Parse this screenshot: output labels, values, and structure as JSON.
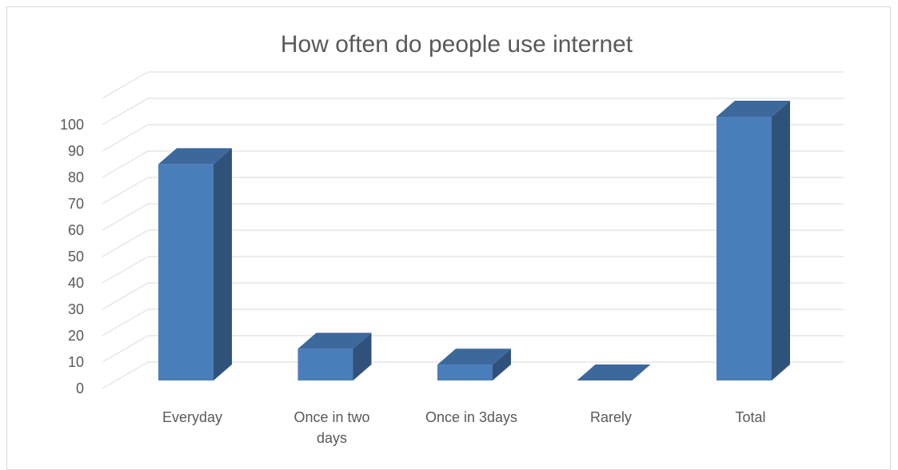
{
  "chart_data": {
    "type": "bar",
    "title": "How often do people use internet",
    "categories": [
      "Everyday",
      "Once in two days",
      "Once in 3days",
      "Rarely",
      "Total"
    ],
    "series": [
      {
        "values": [
          82,
          12,
          6,
          0,
          100
        ]
      }
    ],
    "ylim": [
      0,
      100
    ],
    "yticks": [
      0,
      10,
      20,
      30,
      40,
      50,
      60,
      70,
      80,
      90,
      100
    ],
    "grid": true,
    "legend": "none",
    "colors": {
      "front": "#4a7ebb",
      "side": "#30527a",
      "top": "#3d689c",
      "grid": "#d9d9d9",
      "text": "#595959"
    }
  }
}
